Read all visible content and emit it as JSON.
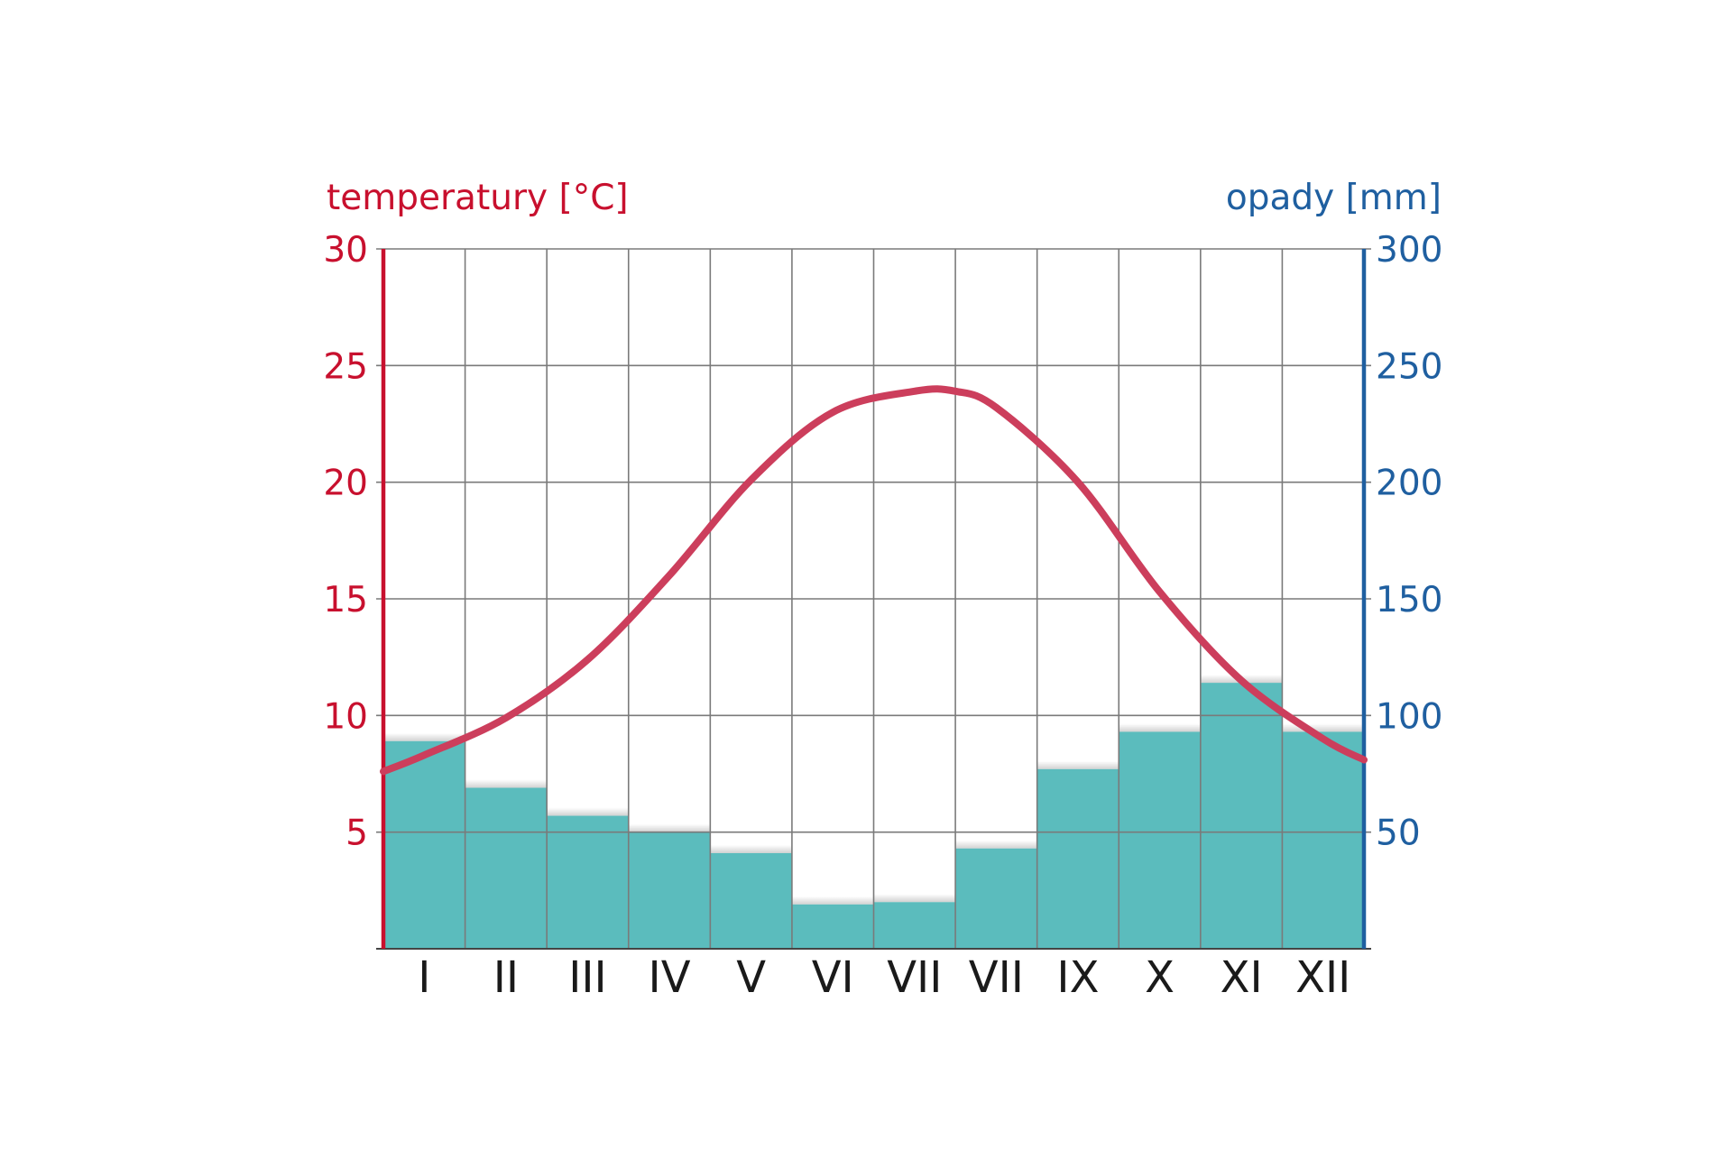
{
  "chart_data": {
    "type": "bar",
    "title": "",
    "xlabel": "",
    "categories": [
      "I",
      "II",
      "III",
      "IV",
      "V",
      "VI",
      "VII",
      "VII",
      "IX",
      "X",
      "XI",
      "XII"
    ],
    "left_axis": {
      "label": "temperatury [°C]",
      "ylim": [
        0,
        30
      ],
      "ticks": [
        5,
        10,
        15,
        20,
        25,
        30
      ],
      "color": "#c8102e"
    },
    "right_axis": {
      "label": "opady [mm]",
      "ylim": [
        0,
        300
      ],
      "ticks": [
        50,
        100,
        150,
        200,
        250,
        300
      ],
      "color": "#1f5fa0"
    },
    "series": [
      {
        "type": "bar",
        "axis": "right",
        "color": "#5bbcbd",
        "values": [
          89,
          69,
          57,
          50,
          41,
          19,
          20,
          43,
          77,
          93,
          114,
          93
        ]
      },
      {
        "type": "line",
        "axis": "left",
        "smooth": true,
        "color": "#cc3e5c",
        "x": [
          0.0,
          0.5,
          1.5,
          2.5,
          3.5,
          4.5,
          5.5,
          6.5,
          7.0,
          7.5,
          8.5,
          9.5,
          10.5,
          11.5,
          12.0
        ],
        "values": [
          7.6,
          8.3,
          9.9,
          12.4,
          16.0,
          20.1,
          23.0,
          23.9,
          23.9,
          23.2,
          20.0,
          15.3,
          11.5,
          9.0,
          8.1
        ]
      }
    ],
    "grid": true
  }
}
